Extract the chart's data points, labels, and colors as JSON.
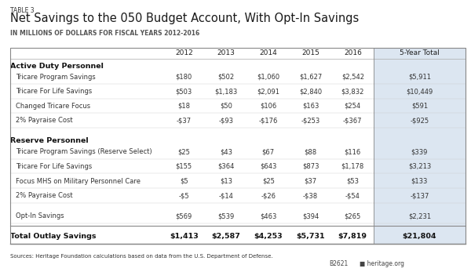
{
  "table_label": "TABLE 3",
  "title": "Net Savings to the 050 Budget Account, With Opt-In Savings",
  "subtitle": "IN MILLIONS OF DOLLARS FOR FISCAL YEARS 2012-2016",
  "columns": [
    "",
    "2012",
    "2013",
    "2014",
    "2015",
    "2016",
    "5-Year Total"
  ],
  "rows": [
    {
      "label": "Active Duty Personnel",
      "type": "header",
      "values": [
        "",
        "",
        "",
        "",
        "",
        ""
      ]
    },
    {
      "label": "Tricare Program Savings",
      "type": "data",
      "values": [
        "$180",
        "$502",
        "$1,060",
        "$1,627",
        "$2,542",
        "$5,911"
      ]
    },
    {
      "label": "Tricare For Life Savings",
      "type": "data",
      "values": [
        "$503",
        "$1,183",
        "$2,091",
        "$2,840",
        "$3,832",
        "$10,449"
      ]
    },
    {
      "label": "Changed Tricare Focus",
      "type": "data",
      "values": [
        "$18",
        "$50",
        "$106",
        "$163",
        "$254",
        "$591"
      ]
    },
    {
      "label": "2% Payraise Cost",
      "type": "data",
      "values": [
        "-$37",
        "-$93",
        "-$176",
        "-$253",
        "-$367",
        "-$925"
      ]
    },
    {
      "label": "",
      "type": "spacer",
      "values": [
        "",
        "",
        "",
        "",
        "",
        ""
      ]
    },
    {
      "label": "Reserve Personnel",
      "type": "header",
      "values": [
        "",
        "",
        "",
        "",
        "",
        ""
      ]
    },
    {
      "label": "Tricare Program Savings (Reserve Select)",
      "type": "data",
      "values": [
        "$25",
        "$43",
        "$67",
        "$88",
        "$116",
        "$339"
      ]
    },
    {
      "label": "Tricare For Life Savings",
      "type": "data",
      "values": [
        "$155",
        "$364",
        "$643",
        "$873",
        "$1,178",
        "$3,213"
      ]
    },
    {
      "label": "Focus MHS on Military Personnel Care",
      "type": "data",
      "values": [
        "$5",
        "$13",
        "$25",
        "$37",
        "$53",
        "$133"
      ]
    },
    {
      "label": "2% Payraise Cost",
      "type": "data",
      "values": [
        "-$5",
        "-$14",
        "-$26",
        "-$38",
        "-$54",
        "-$137"
      ]
    },
    {
      "label": "",
      "type": "spacer",
      "values": [
        "",
        "",
        "",
        "",
        "",
        ""
      ]
    },
    {
      "label": "Opt-In Savings",
      "type": "data",
      "values": [
        "$569",
        "$539",
        "$463",
        "$394",
        "$265",
        "$2,231"
      ]
    },
    {
      "label": "",
      "type": "spacer_thin",
      "values": [
        "",
        "",
        "",
        "",
        "",
        ""
      ]
    },
    {
      "label": "Total Outlay Savings",
      "type": "total",
      "values": [
        "$1,413",
        "$2,587",
        "$4,253",
        "$5,731",
        "$7,819",
        "$21,804"
      ]
    }
  ],
  "sources_text": "Sources: Heritage Foundation calculations based on data from the U.S. Department of Defense.",
  "footer_left": "B2621",
  "footer_right": "heritage.org",
  "bg_color": "#ffffff",
  "header_col_bg": "#dce6f1",
  "border_color": "#888888",
  "title_color": "#1a1a1a",
  "data_color": "#333333"
}
